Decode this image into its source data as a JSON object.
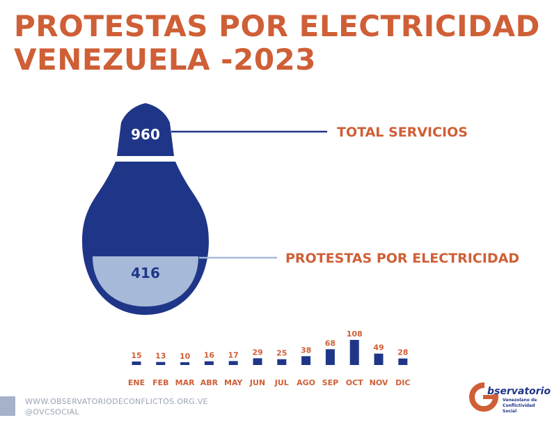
{
  "title": {
    "line1": "PROTESTAS POR ELECTRICIDAD",
    "line2": "VENEZUELA -2023"
  },
  "colors": {
    "accent": "#cf5f36",
    "bulb_dark": "#1f3688",
    "bulb_light": "#a6b9d8",
    "footer_text": "#9aa3b5"
  },
  "chart_data": [
    {
      "type": "pie",
      "categories": [
        "TOTAL SERVICIOS",
        "PROTESTAS POR ELECTRICIDAD"
      ],
      "values": [
        960,
        416
      ]
    },
    {
      "type": "bar",
      "categories": [
        "ENE",
        "FEB",
        "MAR",
        "ABR",
        "MAY",
        "JUN",
        "JUL",
        "AGO",
        "SEP",
        "OCT",
        "NOV",
        "DIC"
      ],
      "values": [
        15,
        13,
        10,
        16,
        17,
        29,
        25,
        38,
        68,
        108,
        49,
        28
      ],
      "ylim": [
        0,
        108
      ]
    }
  ],
  "footer": {
    "website": "WWW.OBSERVATORIODECONFLICTOS.ORG.VE",
    "social": "@OVCSOCIAL"
  },
  "logo": {
    "name": "bservatorio",
    "subtitle": "Venezolano de Conflictividad Social",
    "icon": "ovcs-logo-g"
  }
}
